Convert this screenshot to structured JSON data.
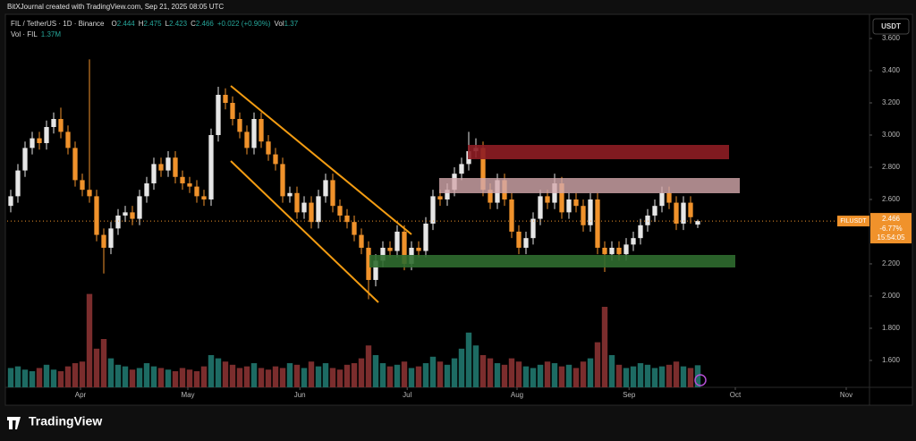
{
  "chart_data": {
    "type": "candlestick",
    "header": "BitXJournal created with TradingView.com, Sep 21, 2025 08:05 UTC",
    "symbol": "FIL / TetherUS · 1D · Binance",
    "ohlc_labels": [
      "O",
      "H",
      "L",
      "C"
    ],
    "change_text": "+0.022 (+0.90%)",
    "volume_title": "Vol",
    "volume_series": "Vol · FIL",
    "legend_volume": "1.37M",
    "currency": "USDT",
    "brand": "TradingView",
    "last_price": {
      "symbol": "FILUSDT",
      "value": 2.466,
      "change": "-6.77%",
      "countdown": "15:54:05"
    },
    "up_color": "#e6e6e6",
    "down_color": "#f0922b",
    "up_volume_color": "#1d6b63",
    "down_volume_color": "#7b2d2d",
    "ylim": [
      1.433,
      3.739
    ],
    "yticks": [
      {
        "value": 1.6,
        "label": "1.600"
      },
      {
        "value": 1.8,
        "label": "1.800"
      },
      {
        "value": 2.0,
        "label": "2.000"
      },
      {
        "value": 2.2,
        "label": "2.200"
      },
      {
        "value": 2.6,
        "label": "2.600"
      },
      {
        "value": 2.8,
        "label": "2.800"
      },
      {
        "value": 3.0,
        "label": "3.000"
      },
      {
        "value": 3.2,
        "label": "3.200"
      },
      {
        "value": 3.4,
        "label": "3.400"
      },
      {
        "value": 3.6,
        "label": "3.600"
      }
    ],
    "xlim": [
      -0.5,
      120
    ],
    "xticks": [
      {
        "value": 9.75,
        "label": "Apr"
      },
      {
        "value": 24.75,
        "label": "May"
      },
      {
        "value": 40.4,
        "label": "Jun"
      },
      {
        "value": 55.4,
        "label": "Jul"
      },
      {
        "value": 70.75,
        "label": "Aug"
      },
      {
        "value": 86.4,
        "label": "Sep"
      },
      {
        "value": 101.25,
        "label": "Oct"
      },
      {
        "value": 116.75,
        "label": "Nov"
      }
    ],
    "open": [
      2.56,
      2.62,
      2.78,
      2.92,
      2.98,
      2.95,
      3.05,
      3.1,
      3.02,
      2.92,
      2.72,
      2.66,
      2.62,
      2.38,
      2.3,
      2.42,
      2.5,
      2.52,
      2.48,
      2.62,
      2.7,
      2.82,
      2.78,
      2.86,
      2.74,
      2.7,
      2.68,
      2.62,
      2.6,
      3.0,
      3.25,
      3.2,
      3.1,
      3.02,
      2.92,
      3.1,
      2.96,
      2.88,
      2.82,
      2.62,
      2.64,
      2.52,
      2.58,
      2.46,
      2.62,
      2.72,
      2.56,
      2.5,
      2.46,
      2.38,
      2.3,
      2.1,
      2.22,
      2.3,
      2.28,
      2.4,
      2.2,
      2.3,
      2.28,
      2.45,
      2.62,
      2.6,
      2.66,
      2.76,
      2.82,
      2.9,
      2.92,
      2.66,
      2.58,
      2.72,
      2.6,
      2.4,
      2.3,
      2.36,
      2.48,
      2.62,
      2.58,
      2.7,
      2.52,
      2.6,
      2.56,
      2.44,
      2.6,
      2.3,
      2.26,
      2.3,
      2.26,
      2.32,
      2.36,
      2.44,
      2.5,
      2.56,
      2.64,
      2.58,
      2.45,
      2.58,
      2.444
    ],
    "high": [
      2.66,
      2.82,
      2.96,
      3.02,
      3.02,
      3.09,
      3.14,
      3.17,
      3.06,
      2.96,
      2.76,
      3.47,
      2.66,
      2.42,
      2.46,
      2.54,
      2.56,
      2.56,
      2.66,
      2.74,
      2.86,
      2.86,
      2.9,
      2.9,
      2.78,
      2.74,
      2.72,
      2.66,
      3.04,
      3.3,
      3.29,
      3.24,
      3.14,
      3.06,
      3.14,
      3.14,
      3.0,
      2.92,
      2.86,
      2.68,
      2.68,
      2.62,
      2.62,
      2.66,
      2.76,
      2.76,
      2.6,
      2.54,
      2.5,
      2.42,
      2.34,
      2.26,
      2.34,
      2.34,
      2.44,
      2.44,
      2.34,
      2.34,
      2.49,
      2.66,
      2.66,
      2.7,
      2.8,
      2.86,
      3.02,
      2.98,
      2.96,
      2.7,
      2.76,
      2.76,
      2.64,
      2.44,
      2.4,
      2.52,
      2.66,
      2.66,
      2.76,
      2.74,
      2.64,
      2.64,
      2.6,
      2.64,
      2.64,
      2.34,
      2.34,
      2.34,
      2.36,
      2.4,
      2.48,
      2.54,
      2.6,
      2.68,
      2.68,
      2.62,
      2.62,
      2.62,
      2.475
    ],
    "low": [
      2.52,
      2.58,
      2.74,
      2.88,
      2.91,
      2.91,
      3.01,
      2.98,
      2.88,
      2.68,
      2.62,
      2.58,
      2.34,
      2.14,
      2.26,
      2.38,
      2.46,
      2.44,
      2.44,
      2.58,
      2.66,
      2.74,
      2.74,
      2.7,
      2.66,
      2.64,
      2.58,
      2.56,
      2.56,
      2.96,
      3.16,
      3.06,
      2.98,
      2.88,
      2.88,
      2.92,
      2.84,
      2.78,
      2.58,
      2.58,
      2.48,
      2.48,
      2.42,
      2.42,
      2.58,
      2.52,
      2.46,
      2.42,
      2.34,
      2.26,
      1.98,
      2.06,
      2.18,
      2.24,
      2.24,
      2.16,
      2.16,
      2.24,
      2.24,
      2.41,
      2.56,
      2.56,
      2.62,
      2.72,
      2.78,
      2.86,
      2.62,
      2.54,
      2.54,
      2.56,
      2.36,
      2.26,
      2.26,
      2.32,
      2.44,
      2.54,
      2.54,
      2.48,
      2.48,
      2.52,
      2.4,
      2.4,
      2.26,
      2.15,
      2.22,
      2.22,
      2.22,
      2.28,
      2.32,
      2.4,
      2.46,
      2.52,
      2.54,
      2.41,
      2.41,
      2.45,
      2.423
    ],
    "close": [
      2.62,
      2.78,
      2.92,
      2.98,
      2.95,
      3.05,
      3.1,
      3.02,
      2.92,
      2.72,
      2.66,
      2.62,
      2.38,
      2.3,
      2.42,
      2.5,
      2.52,
      2.48,
      2.62,
      2.7,
      2.82,
      2.78,
      2.86,
      2.74,
      2.7,
      2.68,
      2.62,
      2.6,
      3.0,
      3.25,
      3.2,
      3.1,
      3.02,
      2.92,
      3.1,
      2.96,
      2.88,
      2.82,
      2.62,
      2.64,
      2.52,
      2.58,
      2.46,
      2.62,
      2.72,
      2.56,
      2.5,
      2.46,
      2.38,
      2.3,
      2.1,
      2.22,
      2.3,
      2.28,
      2.4,
      2.2,
      2.3,
      2.28,
      2.45,
      2.62,
      2.6,
      2.66,
      2.76,
      2.82,
      2.9,
      2.92,
      2.66,
      2.58,
      2.72,
      2.6,
      2.4,
      2.3,
      2.36,
      2.48,
      2.62,
      2.58,
      2.7,
      2.52,
      2.6,
      2.56,
      2.44,
      2.6,
      2.3,
      2.26,
      2.3,
      2.26,
      2.32,
      2.36,
      2.44,
      2.5,
      2.56,
      2.64,
      2.58,
      2.45,
      2.58,
      2.49,
      2.466
    ],
    "volume": [
      1.2,
      1.3,
      1.1,
      1.0,
      1.2,
      1.4,
      1.1,
      1.0,
      1.3,
      1.5,
      1.6,
      5.8,
      2.4,
      3.0,
      1.8,
      1.4,
      1.3,
      1.1,
      1.2,
      1.5,
      1.3,
      1.2,
      1.1,
      1.0,
      1.2,
      1.1,
      1.0,
      1.3,
      2.0,
      1.8,
      1.6,
      1.4,
      1.2,
      1.3,
      1.5,
      1.2,
      1.1,
      1.3,
      1.2,
      1.5,
      1.4,
      1.2,
      1.6,
      1.3,
      1.5,
      1.2,
      1.1,
      1.4,
      1.5,
      1.8,
      2.6,
      2.0,
      1.5,
      1.3,
      1.4,
      1.6,
      1.2,
      1.3,
      1.5,
      1.9,
      1.6,
      1.4,
      1.8,
      2.4,
      3.4,
      2.6,
      2.0,
      1.8,
      1.5,
      1.4,
      1.8,
      1.6,
      1.3,
      1.2,
      1.4,
      1.6,
      1.5,
      1.3,
      1.4,
      1.2,
      1.6,
      1.8,
      2.8,
      5.0,
      2.0,
      1.4,
      1.2,
      1.3,
      1.5,
      1.4,
      1.2,
      1.3,
      1.4,
      1.6,
      1.3,
      1.2,
      1.37
    ]
  }
}
